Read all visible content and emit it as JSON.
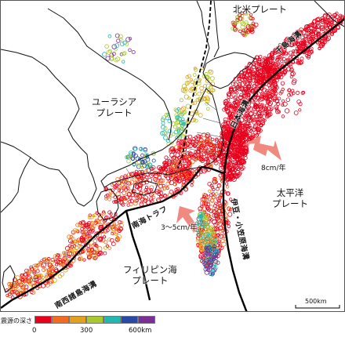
{
  "labels": {
    "north_american_plate": "北米プレート",
    "eurasian_plate_line1": "ユーラシア",
    "eurasian_plate_line2": "プレート",
    "pacific_plate_line1": "太平洋",
    "pacific_plate_line2": "プレート",
    "philippine_plate_line1": "フィリピン海",
    "philippine_plate_line2": "プレート",
    "chishima_trench": "千島海溝",
    "japan_trench": "日本海溝",
    "izu_ogasawara_trench": "伊豆・小笠原海溝",
    "nankai_trough": "南海トラフ",
    "nansei_trench": "南西諸島海溝",
    "pacific_rate": "8cm/年",
    "philippine_rate": "3～5cm/年",
    "scale": "500km"
  },
  "legend": {
    "title": "震源の深さ",
    "colors": [
      "#e8001c",
      "#f26b21",
      "#e2a01f",
      "#a9c830",
      "#22b7b0",
      "#2a48a8",
      "#7b2f95"
    ],
    "ticks": [
      "0",
      "300",
      "600km"
    ]
  },
  "colors": {
    "shallow": "#ff1a1a",
    "arrow": "#f08a80",
    "land_outline": "#111111",
    "plate_boundary": "#000000"
  }
}
